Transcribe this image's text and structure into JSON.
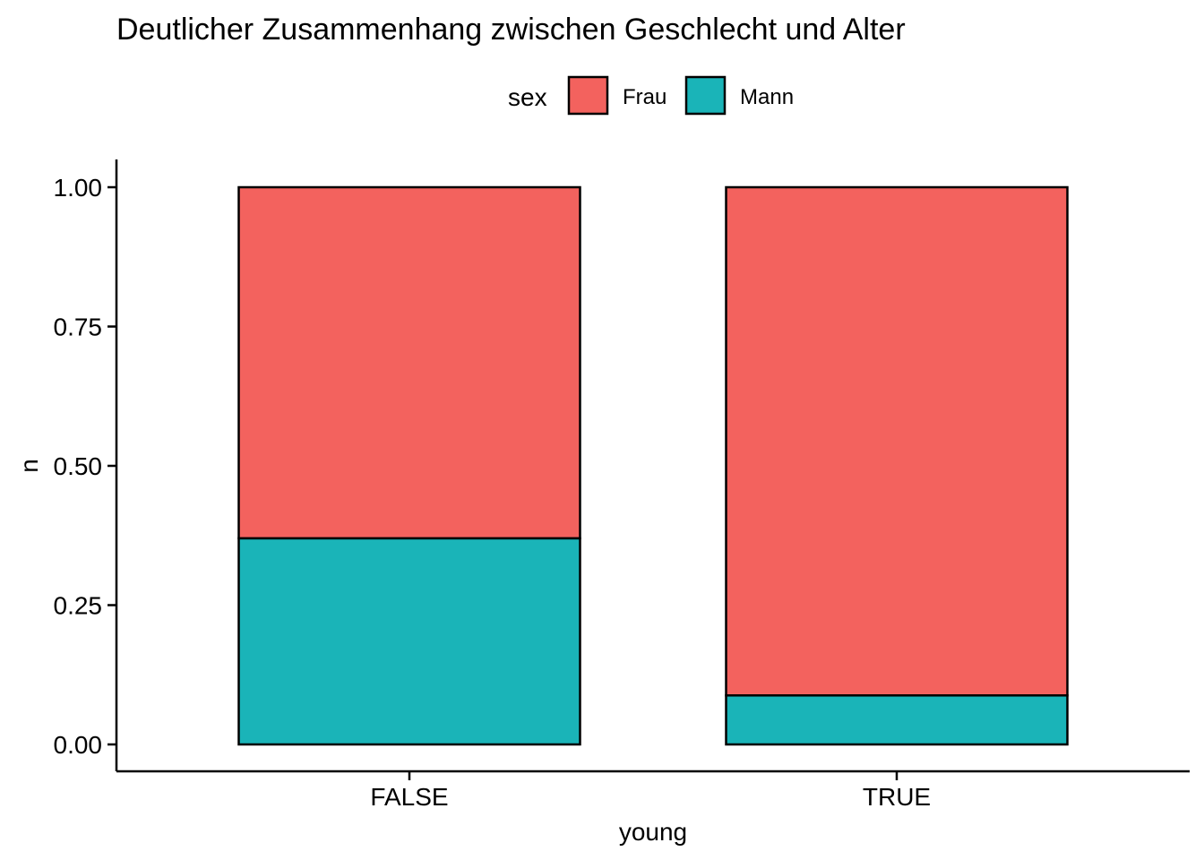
{
  "chart_data": {
    "type": "bar",
    "stacked": true,
    "position": "fill",
    "title": "Deutlicher Zusammenhang zwischen Geschlecht und Alter",
    "xlabel": "young",
    "ylabel": "n",
    "categories": [
      "FALSE",
      "TRUE"
    ],
    "ylim": [
      0,
      1
    ],
    "yticks": [
      0,
      0.25,
      0.5,
      0.75,
      1
    ],
    "ytick_labels": [
      "0.00",
      "0.25",
      "0.50",
      "0.75",
      "1.00"
    ],
    "grid": false,
    "legend": {
      "title": "sex",
      "position": "top",
      "entries": [
        "Frau",
        "Mann"
      ]
    },
    "series": [
      {
        "name": "Frau",
        "color": "#F3625E",
        "values": [
          0.63,
          0.912
        ]
      },
      {
        "name": "Mann",
        "color": "#1AB4B8",
        "values": [
          0.37,
          0.088
        ]
      }
    ],
    "stack_order": [
      "Mann",
      "Frau"
    ]
  }
}
